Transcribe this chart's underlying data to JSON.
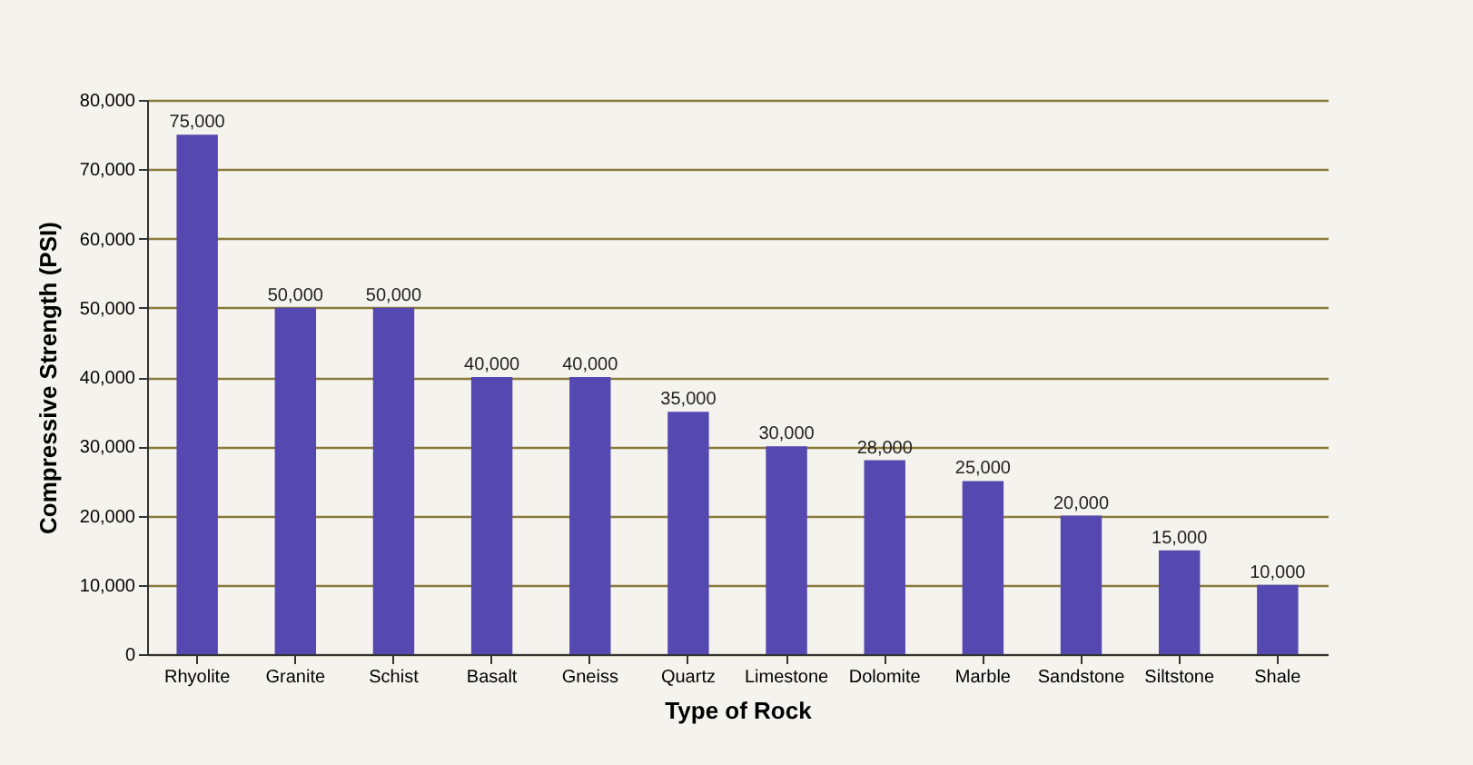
{
  "chart_data": {
    "type": "bar",
    "xlabel": "Type of Rock",
    "ylabel": "Compressive Strength (PSI)",
    "categories": [
      "Rhyolite",
      "Granite",
      "Schist",
      "Basalt",
      "Gneiss",
      "Quartz",
      "Limestone",
      "Dolomite",
      "Marble",
      "Sandstone",
      "Siltstone",
      "Shale"
    ],
    "values": [
      75000,
      50000,
      50000,
      40000,
      40000,
      35000,
      30000,
      28000,
      25000,
      20000,
      15000,
      10000
    ],
    "value_labels": [
      "75,000",
      "50,000",
      "50,000",
      "40,000",
      "40,000",
      "35,000",
      "30,000",
      "28,000",
      "25,000",
      "20,000",
      "15,000",
      "10,000"
    ],
    "color": "#5548b0",
    "ylim": [
      0,
      80000
    ],
    "yticks": [
      0,
      {
        "value": 10000,
        "label": "10,000"
      },
      {
        "value": 20000,
        "label": "20,000"
      },
      {
        "value": 30000,
        "label": "30,000"
      },
      {
        "value": 40000,
        "label": "40,000"
      },
      {
        "value": 50000,
        "label": "50,000"
      },
      {
        "value": 60000,
        "label": "60,000"
      },
      {
        "value": 70000,
        "label": "70,000"
      },
      {
        "value": 80000,
        "label": "80,000"
      }
    ],
    "grid": "y",
    "legend": false
  }
}
